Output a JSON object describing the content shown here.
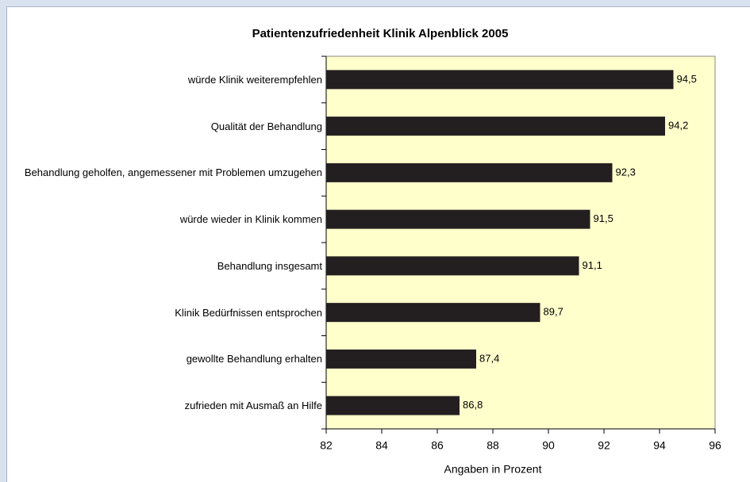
{
  "chart_data": {
    "type": "bar",
    "orientation": "horizontal",
    "title": "Patientenzufriedenheit Klinik Alpenblick 2005",
    "x_label": "Angaben in Prozent",
    "categories": [
      "würde Klinik weiterempfehlen",
      "Qualität der Behandlung",
      "Behandlung geholfen, angemessener mit Problemen umzugehen",
      "würde wieder in Klinik kommen",
      "Behandlung insgesamt",
      "Klinik Bedürfnissen entsprochen",
      "gewollte Behandlung erhalten",
      "zufrieden mit Ausmaß an Hilfe"
    ],
    "values": [
      94.5,
      94.2,
      92.3,
      91.5,
      91.1,
      89.7,
      87.4,
      86.8
    ],
    "value_labels": [
      "94,5",
      "94,2",
      "92,3",
      "91,5",
      "91,1",
      "89,7",
      "87,4",
      "86,8"
    ],
    "color": "#231f20",
    "plot_background": "#ffffcc",
    "xlim": [
      82,
      96
    ],
    "xticks": [
      82,
      84,
      86,
      88,
      90,
      92,
      94,
      96
    ]
  }
}
